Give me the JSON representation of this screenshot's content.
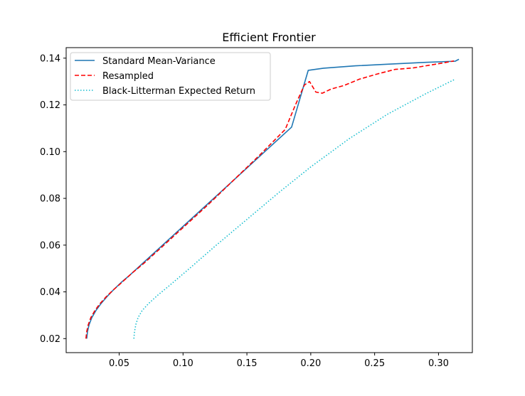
{
  "chart_data": {
    "type": "line",
    "title": "Efficient Frontier",
    "xlabel": "",
    "ylabel": "",
    "xlim": [
      0.0085,
      0.3265
    ],
    "ylim": [
      0.014,
      0.1445
    ],
    "xticks": [
      0.05,
      0.1,
      0.15,
      0.2,
      0.25,
      0.3
    ],
    "xtick_labels": [
      "0.05",
      "0.10",
      "0.15",
      "0.20",
      "0.25",
      "0.30"
    ],
    "yticks": [
      0.02,
      0.04,
      0.06,
      0.08,
      0.1,
      0.12,
      0.14
    ],
    "ytick_labels": [
      "0.02",
      "0.04",
      "0.06",
      "0.08",
      "0.10",
      "0.12",
      "0.14"
    ],
    "grid": false,
    "legend_position": "top-left",
    "series": [
      {
        "name": "Standard Mean-Variance",
        "color": "#1f77b4",
        "style": "solid",
        "x": [
          0.0246,
          0.0252,
          0.0265,
          0.0286,
          0.0318,
          0.0358,
          0.0405,
          0.0458,
          0.0515,
          0.058,
          0.068,
          0.08,
          0.095,
          0.11,
          0.13,
          0.15,
          0.17,
          0.185,
          0.198,
          0.21,
          0.235,
          0.26,
          0.29,
          0.313,
          0.316
        ],
        "y": [
          0.02,
          0.023,
          0.026,
          0.029,
          0.032,
          0.035,
          0.038,
          0.041,
          0.044,
          0.047,
          0.052,
          0.058,
          0.0655,
          0.073,
          0.083,
          0.093,
          0.103,
          0.1105,
          0.1348,
          0.1357,
          0.1367,
          0.1374,
          0.1382,
          0.1387,
          0.1395
        ]
      },
      {
        "name": "Resampled",
        "color": "#ff0000",
        "style": "dashed",
        "x": [
          0.024,
          0.0246,
          0.0258,
          0.0278,
          0.031,
          0.035,
          0.04,
          0.0458,
          0.052,
          0.06,
          0.07,
          0.085,
          0.1,
          0.12,
          0.14,
          0.16,
          0.18,
          0.188,
          0.195,
          0.199,
          0.204,
          0.209,
          0.216,
          0.226,
          0.238,
          0.252,
          0.266,
          0.28,
          0.293,
          0.304,
          0.312
        ],
        "y": [
          0.02,
          0.023,
          0.026,
          0.029,
          0.032,
          0.035,
          0.038,
          0.041,
          0.044,
          0.048,
          0.0525,
          0.06,
          0.0675,
          0.0775,
          0.088,
          0.0985,
          0.1095,
          0.12,
          0.1285,
          0.13,
          0.1255,
          0.125,
          0.1268,
          0.1283,
          0.131,
          0.1332,
          0.1352,
          0.1358,
          0.137,
          0.138,
          0.1388
        ]
      },
      {
        "name": "Black-Litterman Expected Return",
        "color": "#17becf",
        "style": "dotted",
        "x": [
          0.0615,
          0.062,
          0.063,
          0.0648,
          0.068,
          0.073,
          0.08,
          0.09,
          0.105,
          0.125,
          0.15,
          0.175,
          0.2,
          0.23,
          0.26,
          0.29,
          0.313
        ],
        "y": [
          0.02,
          0.023,
          0.026,
          0.029,
          0.032,
          0.035,
          0.0385,
          0.043,
          0.05,
          0.0595,
          0.071,
          0.0825,
          0.0935,
          0.1055,
          0.116,
          0.1248,
          0.131
        ]
      }
    ]
  }
}
